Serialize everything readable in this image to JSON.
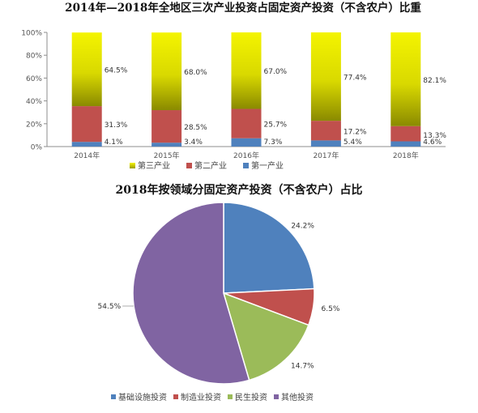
{
  "chart_data": [
    {
      "type": "bar",
      "stacked": true,
      "percent": true,
      "title": "2014年—2018年全地区三次产业投资占固定资产投资（不含农户）比重",
      "categories": [
        "2014年",
        "2015年",
        "2016年",
        "2017年",
        "2018年"
      ],
      "yticks": [
        "0%",
        "20%",
        "40%",
        "60%",
        "80%",
        "100%"
      ],
      "ylim": [
        0,
        100
      ],
      "legend_position": "bottom",
      "series": [
        {
          "name": "第一产业",
          "color": "#4f81bd",
          "values": [
            4.1,
            3.4,
            7.3,
            5.4,
            4.6
          ],
          "labels": [
            "4.1%",
            "3.4%",
            "7.3%",
            "5.4%",
            "4.6%"
          ]
        },
        {
          "name": "第二产业",
          "color": "#c0504d",
          "values": [
            31.3,
            28.5,
            25.7,
            17.2,
            13.3
          ],
          "labels": [
            "31.3%",
            "28.5%",
            "25.7%",
            "17.2%",
            "13.3%"
          ]
        },
        {
          "name": "第三产业",
          "color": "#e6e600",
          "values": [
            64.5,
            68.0,
            67.0,
            77.4,
            82.1
          ],
          "labels": [
            "64.5%",
            "68.0%",
            "67.0%",
            "77.4%",
            "82.1%"
          ]
        }
      ]
    },
    {
      "type": "pie",
      "title": "2018年按领域分固定资产投资（不含农户）占比",
      "legend_position": "bottom",
      "slices": [
        {
          "name": "基础设施投资",
          "value": 24.2,
          "label": "24.2%",
          "color": "#4f81bd"
        },
        {
          "name": "制造业投资",
          "value": 6.5,
          "label": "6.5%",
          "color": "#c0504d"
        },
        {
          "name": "民生投资",
          "value": 14.7,
          "label": "14.7%",
          "color": "#9bbb59"
        },
        {
          "name": "其他投资",
          "value": 54.5,
          "label": "54.5%",
          "color": "#8064a2"
        }
      ]
    }
  ]
}
